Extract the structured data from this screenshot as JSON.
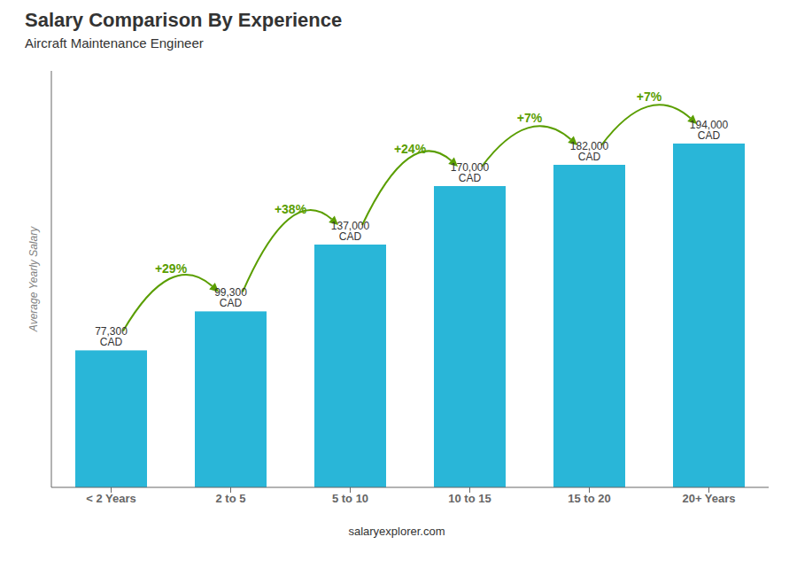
{
  "chart_data": {
    "type": "bar",
    "title": "Salary Comparison By Experience",
    "subtitle": "Aircraft Maintenance Engineer",
    "footer": "salaryexplorer.com",
    "ylabel": "Average Yearly Salary",
    "categories": [
      "< 2 Years",
      "2 to 5",
      "5 to 10",
      "10 to 15",
      "15 to 20",
      "20+ Years"
    ],
    "values": [
      77300,
      99300,
      137000,
      170000,
      182000,
      194000
    ],
    "value_labels": [
      "77,300 CAD",
      "99,300 CAD",
      "137,000 CAD",
      "170,000 CAD",
      "182,000 CAD",
      "194,000 CAD"
    ],
    "data_labels": true,
    "color": "#29b6d8",
    "ylim": [
      0,
      235000
    ],
    "tick_labels": "x",
    "grid": false,
    "annotations": [
      {
        "text": "+29%",
        "color": "#5a9e00"
      },
      {
        "text": "+38%",
        "color": "#5a9e00"
      },
      {
        "text": "+24%",
        "color": "#5a9e00"
      },
      {
        "text": "+7%",
        "color": "#5a9e00"
      },
      {
        "text": "+7%",
        "color": "#5a9e00"
      }
    ]
  }
}
